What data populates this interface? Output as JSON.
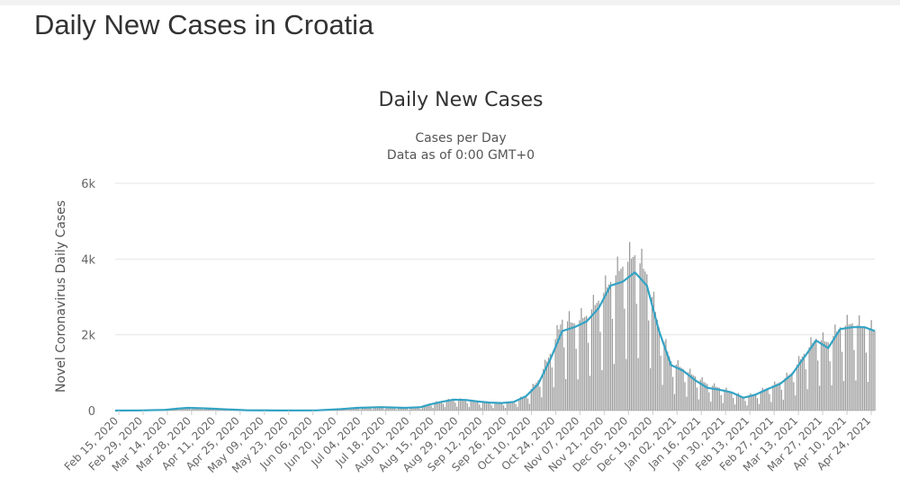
{
  "page": {
    "title": "Daily New Cases in Croatia"
  },
  "chart_data": {
    "type": "bar",
    "title": "Daily New Cases",
    "subtitle": [
      "Cases per Day",
      "Data as of 0:00 GMT+0"
    ],
    "xlabel": "",
    "ylabel": "Novel Coronavirus Daily Cases",
    "ylim": [
      0,
      6000
    ],
    "y_ticks": [
      0,
      2000,
      4000,
      6000
    ],
    "y_tick_labels": [
      "0",
      "2k",
      "4k",
      "6k"
    ],
    "x_start": "2020-02-15",
    "x_end": "2021-04-30",
    "x_tick_labels": [
      "Feb 15, 2020",
      "Feb 29, 2020",
      "Mar 14, 2020",
      "Mar 28, 2020",
      "Apr 11, 2020",
      "Apr 25, 2020",
      "May 09, 2020",
      "May 23, 2020",
      "Jun 06, 2020",
      "Jun 20, 2020",
      "Jul 04, 2020",
      "Jul 18, 2020",
      "Aug 01, 2020",
      "Aug 15, 2020",
      "Aug 29, 2020",
      "Sep 12, 2020",
      "Sep 26, 2020",
      "Oct 10, 2020",
      "Oct 24, 2020",
      "Nov 07, 2020",
      "Nov 21, 2020",
      "Dec 05, 2020",
      "Dec 19, 2020",
      "Jan 02, 2021",
      "Jan 16, 2021",
      "Jan 30, 2021",
      "Feb 13, 2021",
      "Feb 27, 2021",
      "Mar 13, 2021",
      "Mar 27, 2021",
      "Apr 10, 2021",
      "Apr 24, 2021"
    ],
    "grid": true,
    "legend": "none",
    "series": [
      {
        "kind": "bar",
        "color": "#999999",
        "points": [
          [
            "2020-02-15",
            0
          ],
          [
            "2020-03-01",
            5
          ],
          [
            "2020-03-15",
            20
          ],
          [
            "2020-03-22",
            60
          ],
          [
            "2020-03-28",
            90
          ],
          [
            "2020-04-04",
            80
          ],
          [
            "2020-04-11",
            55
          ],
          [
            "2020-04-20",
            30
          ],
          [
            "2020-05-01",
            10
          ],
          [
            "2020-05-20",
            2
          ],
          [
            "2020-06-10",
            5
          ],
          [
            "2020-06-25",
            40
          ],
          [
            "2020-07-04",
            80
          ],
          [
            "2020-07-18",
            100
          ],
          [
            "2020-08-01",
            70
          ],
          [
            "2020-08-10",
            100
          ],
          [
            "2020-08-15",
            180
          ],
          [
            "2020-08-22",
            250
          ],
          [
            "2020-08-29",
            300
          ],
          [
            "2020-09-05",
            280
          ],
          [
            "2020-09-12",
            230
          ],
          [
            "2020-09-19",
            200
          ],
          [
            "2020-09-26",
            190
          ],
          [
            "2020-10-03",
            230
          ],
          [
            "2020-10-10",
            400
          ],
          [
            "2020-10-17",
            800
          ],
          [
            "2020-10-24",
            1500
          ],
          [
            "2020-10-31",
            2400
          ],
          [
            "2020-11-07",
            2300
          ],
          [
            "2020-11-14",
            2500
          ],
          [
            "2020-11-21",
            2900
          ],
          [
            "2020-11-28",
            3400
          ],
          [
            "2020-12-05",
            3800
          ],
          [
            "2020-12-12",
            4100
          ],
          [
            "2020-12-19",
            3600
          ],
          [
            "2020-12-26",
            2200
          ],
          [
            "2021-01-02",
            1300
          ],
          [
            "2021-01-09",
            1100
          ],
          [
            "2021-01-16",
            900
          ],
          [
            "2021-01-23",
            700
          ],
          [
            "2021-01-30",
            600
          ],
          [
            "2021-02-06",
            500
          ],
          [
            "2021-02-13",
            350
          ],
          [
            "2021-02-20",
            450
          ],
          [
            "2021-02-27",
            600
          ],
          [
            "2021-03-06",
            750
          ],
          [
            "2021-03-13",
            1000
          ],
          [
            "2021-03-20",
            1500
          ],
          [
            "2021-03-27",
            1900
          ],
          [
            "2021-04-03",
            1800
          ],
          [
            "2021-04-10",
            2200
          ],
          [
            "2021-04-17",
            2300
          ],
          [
            "2021-04-24",
            2200
          ],
          [
            "2021-04-30",
            2100
          ]
        ]
      },
      {
        "kind": "line",
        "color": "#33a3c4",
        "points": [
          [
            "2020-02-15",
            0
          ],
          [
            "2020-03-01",
            5
          ],
          [
            "2020-03-15",
            20
          ],
          [
            "2020-03-22",
            50
          ],
          [
            "2020-03-28",
            70
          ],
          [
            "2020-04-04",
            65
          ],
          [
            "2020-04-11",
            50
          ],
          [
            "2020-04-20",
            30
          ],
          [
            "2020-05-01",
            10
          ],
          [
            "2020-05-20",
            2
          ],
          [
            "2020-06-10",
            5
          ],
          [
            "2020-06-25",
            40
          ],
          [
            "2020-07-04",
            70
          ],
          [
            "2020-07-18",
            90
          ],
          [
            "2020-08-01",
            70
          ],
          [
            "2020-08-10",
            90
          ],
          [
            "2020-08-15",
            160
          ],
          [
            "2020-08-22",
            230
          ],
          [
            "2020-08-29",
            290
          ],
          [
            "2020-09-05",
            280
          ],
          [
            "2020-09-12",
            240
          ],
          [
            "2020-09-19",
            210
          ],
          [
            "2020-09-26",
            200
          ],
          [
            "2020-10-03",
            230
          ],
          [
            "2020-10-10",
            380
          ],
          [
            "2020-10-17",
            700
          ],
          [
            "2020-10-24",
            1350
          ],
          [
            "2020-10-31",
            2100
          ],
          [
            "2020-11-07",
            2200
          ],
          [
            "2020-11-14",
            2350
          ],
          [
            "2020-11-21",
            2700
          ],
          [
            "2020-11-28",
            3300
          ],
          [
            "2020-12-05",
            3400
          ],
          [
            "2020-12-12",
            3650
          ],
          [
            "2020-12-19",
            3300
          ],
          [
            "2020-12-26",
            2100
          ],
          [
            "2021-01-02",
            1200
          ],
          [
            "2021-01-09",
            1050
          ],
          [
            "2021-01-16",
            800
          ],
          [
            "2021-01-23",
            600
          ],
          [
            "2021-01-30",
            550
          ],
          [
            "2021-02-06",
            480
          ],
          [
            "2021-02-13",
            340
          ],
          [
            "2021-02-20",
            420
          ],
          [
            "2021-02-27",
            570
          ],
          [
            "2021-03-06",
            700
          ],
          [
            "2021-03-13",
            950
          ],
          [
            "2021-03-20",
            1400
          ],
          [
            "2021-03-27",
            1850
          ],
          [
            "2021-04-03",
            1650
          ],
          [
            "2021-04-10",
            2150
          ],
          [
            "2021-04-17",
            2200
          ],
          [
            "2021-04-24",
            2200
          ],
          [
            "2021-04-30",
            2100
          ]
        ]
      }
    ]
  }
}
